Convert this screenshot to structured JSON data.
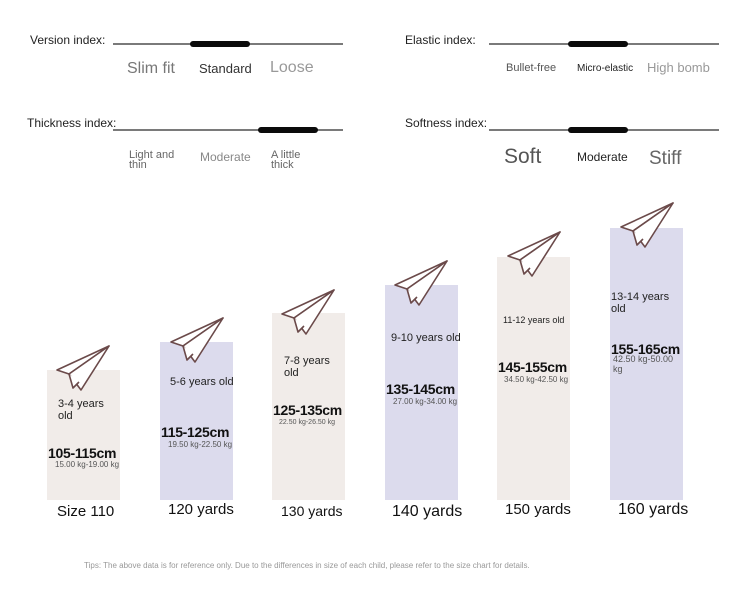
{
  "indexes": {
    "version": {
      "label": "Version index:",
      "options": [
        "Slim fit",
        "Standard",
        "Loose"
      ]
    },
    "elastic": {
      "label": "Elastic index:",
      "options": [
        "Bullet-free",
        "Micro-elastic",
        "High bomb"
      ]
    },
    "thickness": {
      "label": "Thickness index:",
      "options": [
        "Light and thin",
        "Moderate",
        "A little thick"
      ]
    },
    "softness": {
      "label": "Softness index:",
      "options": [
        "Soft",
        "Moderate",
        "Stiff"
      ]
    }
  },
  "sizes": [
    {
      "age": "3-4 years old",
      "height": "105-115cm",
      "weight": "15.00 kg-19.00 kg",
      "size": "Size 110"
    },
    {
      "age": "5-6 years old",
      "height": "115-125cm",
      "weight": "19.50 kg-22.50 kg",
      "size": "120 yards"
    },
    {
      "age": "7-8 years old",
      "height": "125-135cm",
      "weight": "22.50 kg-26.50 kg",
      "size": "130 yards"
    },
    {
      "age": "9-10 years old",
      "height": "135-145cm",
      "weight": "27.00 kg-34.00 kg",
      "size": "140 yards"
    },
    {
      "age": "11-12 years old",
      "height": "145-155cm",
      "weight": "34.50 kg-42.50 kg",
      "size": "150 yards"
    },
    {
      "age": "13-14 years old",
      "height": "155-165cm",
      "weight": "42.50 kg-50.00 kg",
      "size": "160 yards"
    }
  ],
  "tips": "Tips: The above data is for reference only. Due to the differences in size of each child, please refer to the size chart for details.",
  "colors": {
    "bar_beige": "#f1ece9",
    "bar_lavender": "#dcdbed",
    "plane_stroke": "#6b4a4a"
  },
  "icons": {
    "plane": "paper-plane-icon"
  }
}
